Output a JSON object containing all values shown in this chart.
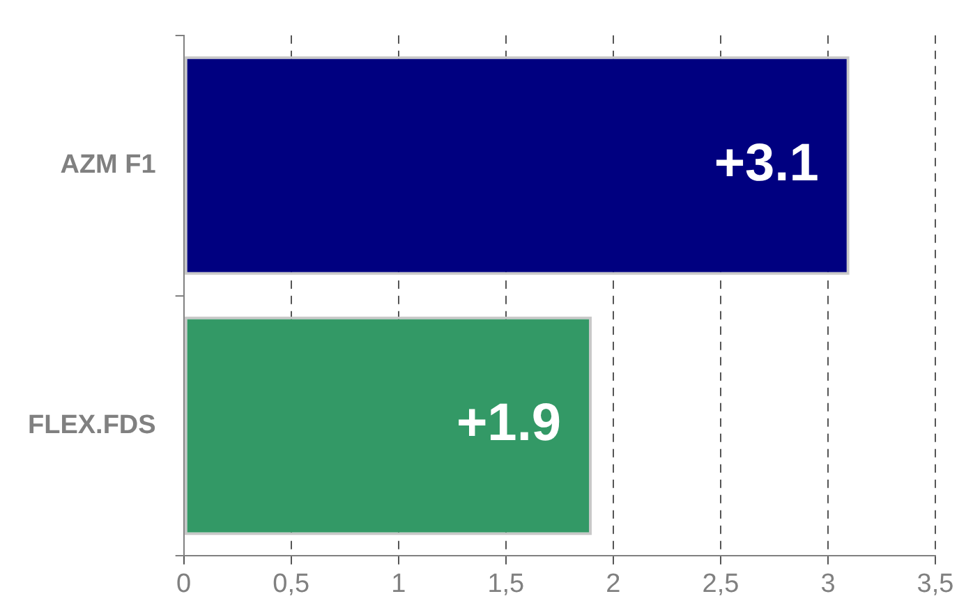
{
  "chart_data": {
    "type": "bar",
    "orientation": "horizontal",
    "categories": [
      "AZM F1",
      "FLEX.FDS"
    ],
    "values": [
      3.1,
      1.9
    ],
    "colors": [
      "#000080",
      "#339966"
    ],
    "value_labels": [
      "+3.1",
      "+1.9"
    ],
    "xlim": [
      0,
      3.5
    ],
    "xticks": [
      0,
      {
        "value": 0.5,
        "label": "0,5"
      },
      1,
      {
        "value": 1.5,
        "label": "1,5"
      },
      2,
      {
        "value": 2.5,
        "label": "2,5"
      },
      3,
      {
        "value": 3.5,
        "label": "3,5"
      }
    ],
    "grid": "x",
    "line_style": "dashed",
    "legend": false
  }
}
